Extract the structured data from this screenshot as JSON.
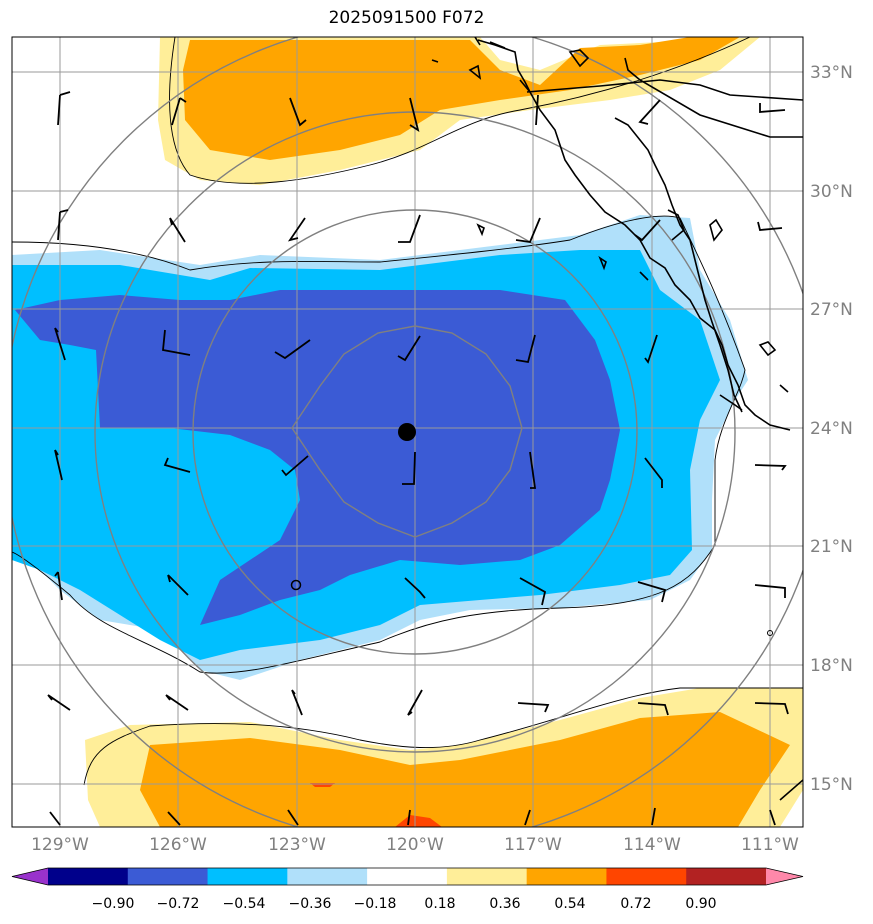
{
  "title": "2025091500 F072",
  "lat_labels": [
    "33°N",
    "30°N",
    "27°N",
    "24°N",
    "21°N",
    "18°N",
    "15°N"
  ],
  "lon_labels": [
    "129°W",
    "126°W",
    "123°W",
    "120°W",
    "117°W",
    "114°W",
    "111°W"
  ],
  "colorbar": {
    "levels": [
      "−0.90",
      "−0.72",
      "−0.54",
      "−0.36",
      "−0.18",
      "0.18",
      "0.36",
      "0.54",
      "0.72",
      "0.90"
    ],
    "colors": [
      "#9932cc",
      "#00008b",
      "#3b5bd5",
      "#00bfff",
      "#b0e0fa",
      "#ffffff",
      "#ffee99",
      "#ffa500",
      "#ff4500",
      "#b22222",
      "#ff88aa"
    ]
  },
  "fill_colors": {
    "deep_blue": "#3b5bd5",
    "sky_blue": "#00bfff",
    "light_blue": "#b0e0fa",
    "light_yellow": "#ffee99",
    "orange": "#ffa500",
    "red_orange": "#ff4500"
  }
}
